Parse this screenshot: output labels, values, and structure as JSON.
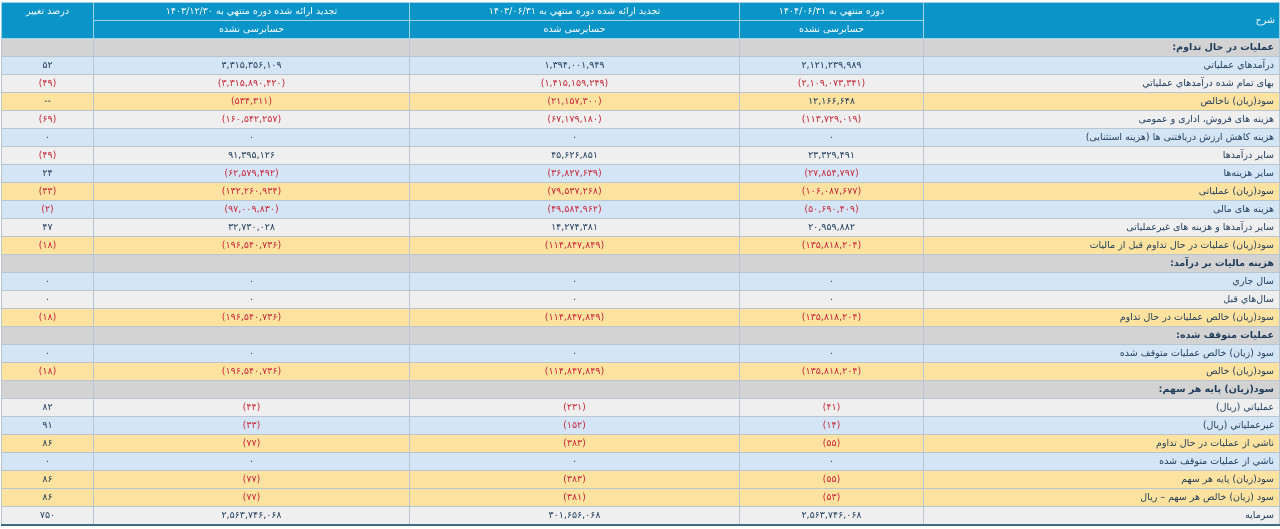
{
  "header": {
    "description": "شرح",
    "col1_title": "دوره منتهي به ۱۴۰۴/۰۶/۳۱",
    "col2_title": "تجدید ارائه شده دوره منتهي به ۱۴۰۳/۰۶/۳۱",
    "col3_title": "تجدید ارائه شده دوره منتهي به ۱۴۰۳/۱۲/۳۰",
    "pct_title": "درصد تغییر",
    "col1_audit": "حسابرسی نشده",
    "col2_audit": "حسابرسی شده",
    "col3_audit": "حسابرسی نشده"
  },
  "colors": {
    "header": "#0a94c8",
    "negative": "#c8283a",
    "text": "#1f3b5a"
  },
  "rows": [
    {
      "type": "section",
      "label": "عملیات در حال تداوم:",
      "values": [
        "",
        "",
        "",
        ""
      ]
    },
    {
      "type": "blue",
      "label": "درآمدهاي عملياتي",
      "values": [
        "۲,۱۲۱,۲۳۹,۹۸۹",
        "۱,۳۹۴,۰۰۱,۹۴۹",
        "۳,۳۱۵,۳۵۶,۱۰۹",
        "۵۲"
      ]
    },
    {
      "type": "grey",
      "label": "بهاى تمام شده درآمدهاي عملياتي",
      "values": [
        "(۲,۱۰۹,۰۷۳,۳۴۱)",
        "(۱,۴۱۵,۱۵۹,۲۴۹)",
        "(۳,۳۱۵,۸۹۰,۴۲۰)",
        "(۴۹)"
      ]
    },
    {
      "type": "yellow",
      "label": "سود(زيان) ناخالص",
      "values": [
        "۱۲,۱۶۶,۶۴۸",
        "(۲۱,۱۵۷,۳۰۰)",
        "(۵۳۴,۳۱۱)",
        "--"
      ]
    },
    {
      "type": "grey",
      "label": "هزينه هاى فروش، ادارى و عمومى",
      "values": [
        "(۱۱۳,۷۲۹,۰۱۹)",
        "(۶۷,۱۷۹,۱۸۰)",
        "(۱۶۰,۵۴۲,۲۵۷)",
        "(۶۹)"
      ]
    },
    {
      "type": "blue",
      "label": "هزینه کاهش ارزش دریافتنی ها (هزینه استثنایی)",
      "values": [
        "۰",
        "۰",
        "۰",
        "۰"
      ]
    },
    {
      "type": "grey",
      "label": "ساير درآمدها",
      "values": [
        "۲۳,۳۲۹,۴۹۱",
        "۴۵,۶۲۶,۸۵۱",
        "۹۱,۳۹۵,۱۲۶",
        "(۴۹)"
      ]
    },
    {
      "type": "blue",
      "label": "سایر هزینه‌ها",
      "values": [
        "(۲۷,۸۵۴,۷۹۷)",
        "(۳۶,۸۲۷,۶۳۹)",
        "(۶۲,۵۷۹,۴۹۲)",
        "۲۴"
      ]
    },
    {
      "type": "yellow",
      "label": "سود(زيان) عملياتى",
      "values": [
        "(۱۰۶,۰۸۷,۶۷۷)",
        "(۷۹,۵۳۷,۲۶۸)",
        "(۱۳۲,۲۶۰,۹۳۴)",
        "(۳۳)"
      ]
    },
    {
      "type": "blue",
      "label": "هزينه هاى مالى",
      "values": [
        "(۵۰,۶۹۰,۴۰۹)",
        "(۴۹,۵۸۴,۹۶۲)",
        "(۹۷,۰۰۹,۸۳۰)",
        "(۲)"
      ]
    },
    {
      "type": "grey",
      "label": "ساير درآمدها و هزينه هاى غيرعملياتى",
      "values": [
        "۲۰,۹۵۹,۸۸۲",
        "۱۴,۲۷۴,۳۸۱",
        "۳۲,۷۳۰,۰۲۸",
        "۴۷"
      ]
    },
    {
      "type": "yellow",
      "label": "سود(زيان) عمليات در حال تداوم قبل از ماليات",
      "values": [
        "(۱۳۵,۸۱۸,۲۰۴)",
        "(۱۱۴,۸۴۷,۸۴۹)",
        "(۱۹۶,۵۴۰,۷۳۶)",
        "(۱۸)"
      ]
    },
    {
      "type": "section",
      "label": "هزينه ماليات بر درآمد:",
      "values": [
        "",
        "",
        "",
        ""
      ]
    },
    {
      "type": "blue",
      "label": "سال جاري",
      "values": [
        "۰",
        "۰",
        "۰",
        "۰"
      ]
    },
    {
      "type": "grey",
      "label": "سال‌هاي قبل",
      "values": [
        "۰",
        "۰",
        "۰",
        "۰"
      ]
    },
    {
      "type": "yellow",
      "label": "سود(زيان) خالص عمليات در حال تداوم",
      "values": [
        "(۱۳۵,۸۱۸,۲۰۴)",
        "(۱۱۴,۸۴۷,۸۴۹)",
        "(۱۹۶,۵۴۰,۷۳۶)",
        "(۱۸)"
      ]
    },
    {
      "type": "section",
      "label": "عمليات متوقف شده:",
      "values": [
        "",
        "",
        "",
        ""
      ]
    },
    {
      "type": "blue",
      "label": "سود (زيان) خالص عمليات متوقف شده",
      "values": [
        "۰",
        "۰",
        "۰",
        "۰"
      ]
    },
    {
      "type": "yellow",
      "label": "سود(زيان) خالص",
      "values": [
        "(۱۳۵,۸۱۸,۲۰۴)",
        "(۱۱۴,۸۴۷,۸۴۹)",
        "(۱۹۶,۵۴۰,۷۳۶)",
        "(۱۸)"
      ]
    },
    {
      "type": "section",
      "label": "سود(زيان) پايه هر سهم:",
      "values": [
        "",
        "",
        "",
        ""
      ]
    },
    {
      "type": "grey",
      "label": "عملياتي (ريال)",
      "values": [
        "(۴۱)",
        "(۲۳۱)",
        "(۴۴)",
        "۸۲"
      ]
    },
    {
      "type": "blue",
      "label": "غيرعملياتي (ريال)",
      "values": [
        "(۱۴)",
        "(۱۵۲)",
        "(۳۳)",
        "۹۱"
      ]
    },
    {
      "type": "yellow",
      "label": "ناشي از عمليات در حال تداوم",
      "values": [
        "(۵۵)",
        "(۳۸۳)",
        "(۷۷)",
        "۸۶"
      ]
    },
    {
      "type": "blue",
      "label": "ناشي از عمليات متوقف شده",
      "values": [
        "۰",
        "۰",
        "۰",
        "۰"
      ]
    },
    {
      "type": "yellow",
      "label": "سود(زيان) پايه هر سهم",
      "values": [
        "(۵۵)",
        "(۳۸۳)",
        "(۷۷)",
        "۸۶"
      ]
    },
    {
      "type": "yellow",
      "label": "سود (زيان) خالص هر سهم – ريال",
      "values": [
        "(۵۳)",
        "(۳۸۱)",
        "(۷۷)",
        "۸۶"
      ]
    },
    {
      "type": "grey",
      "label": "سرمايه",
      "values": [
        "۲,۵۶۳,۷۴۶,۰۶۸",
        "۳۰۱,۶۵۶,۰۶۸",
        "۲,۵۶۳,۷۴۶,۰۶۸",
        "۷۵۰"
      ]
    }
  ]
}
